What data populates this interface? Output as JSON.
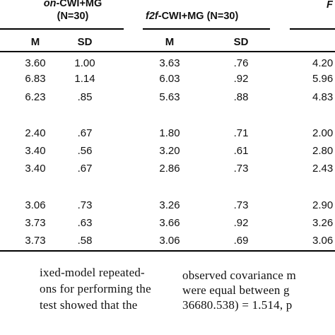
{
  "table": {
    "group_headers": [
      {
        "italic": "on",
        "rest": "-CWI+MG",
        "line2": "(N=30)"
      },
      {
        "italic": "f2f",
        "rest": "-CWI+MG (N=30)",
        "line2": ""
      },
      {
        "italic": "F",
        "rest": "",
        "line2": ""
      }
    ],
    "column_headers": [
      "M",
      "SD",
      "M",
      "SD"
    ],
    "blocks": [
      [
        [
          "3.60",
          "1.00",
          "3.63",
          ".76",
          "4.20"
        ],
        [
          "6.83",
          "1.14",
          "6.03",
          ".92",
          "5.96"
        ],
        [
          "6.23",
          ".85",
          "5.63",
          ".88",
          "4.83"
        ]
      ],
      [
        [
          "2.40",
          ".67",
          "1.80",
          ".71",
          "2.00"
        ],
        [
          "3.40",
          ".56",
          "3.20",
          ".61",
          "2.80"
        ],
        [
          "3.40",
          ".67",
          "2.86",
          ".73",
          "2.43"
        ]
      ],
      [
        [
          "3.06",
          ".73",
          "3.26",
          ".73",
          "2.90"
        ],
        [
          "3.73",
          ".63",
          "3.66",
          ".92",
          "3.26"
        ],
        [
          "3.73",
          ".58",
          "3.06",
          ".69",
          "3.06"
        ]
      ]
    ]
  },
  "body_text": {
    "left_col": [
      "ixed-model repeated-",
      "ons for performing the",
      "test showed that the"
    ],
    "right_col": [
      "observed covariance m",
      "were equal between g",
      "36680.538) = 1.514, p"
    ]
  }
}
